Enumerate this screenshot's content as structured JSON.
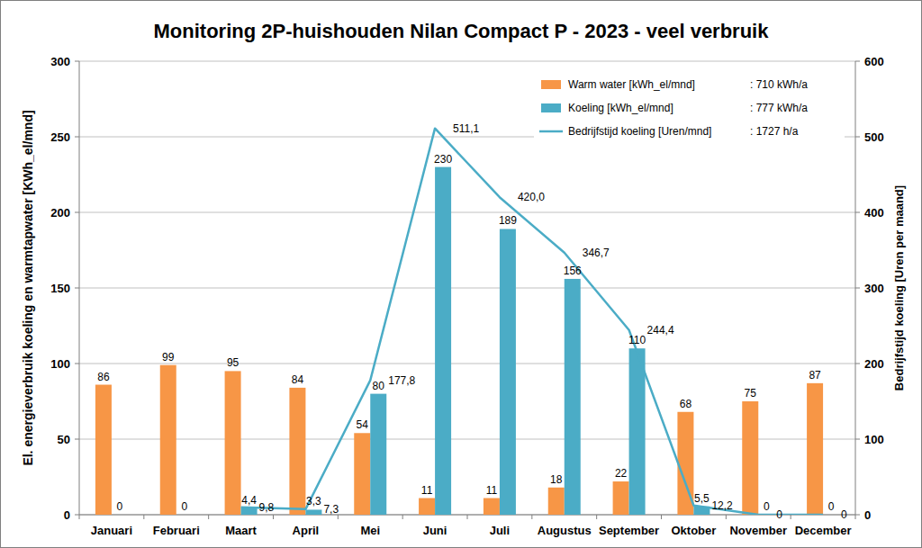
{
  "chart_data": {
    "type": "bar",
    "title": "Monitoring 2P-huishouden Nilan Compact P - 2023 - veel verbruik",
    "ylabel": "El. energieverbruik koeling en warmtapwater  [KWh_el/mnd]",
    "y2label": "Bedrijfstijd koeling [Uren per maand]",
    "categories": [
      "Januari",
      "Februari",
      "Maart",
      "April",
      "Mei",
      "Juni",
      "Juli",
      "Augustus",
      "September",
      "Oktober",
      "November",
      "December"
    ],
    "series": [
      {
        "name": "Warm water [kWh_el/mnd]",
        "color": "#f79646",
        "type": "bar",
        "values": [
          86,
          99,
          95,
          84,
          54,
          11,
          11,
          18,
          22,
          68,
          75,
          87
        ]
      },
      {
        "name": "Koeling [kWh_el/mnd]",
        "color": "#4bacc6",
        "type": "bar",
        "values": [
          0,
          0,
          4.4,
          3.3,
          80,
          230,
          189,
          156,
          110,
          5.5,
          0,
          0
        ],
        "value_labels": [
          "0",
          "0",
          "4,4",
          "3,3",
          "80",
          "230",
          "189",
          "156",
          "110",
          "5,5",
          "0",
          "0"
        ]
      },
      {
        "name": "Bedrijfstijd koeling [Uren/mnd]",
        "color": "#4bacc6",
        "type": "line",
        "axis": "y2",
        "values": [
          null,
          null,
          9.8,
          7.3,
          177.8,
          511.1,
          420.0,
          346.7,
          244.4,
          12.2,
          0,
          0
        ],
        "value_labels": [
          null,
          null,
          "9,8",
          "7,3",
          "177,8",
          "511,1",
          "420,0",
          "346,7",
          "244,4",
          "12,2",
          "0",
          "0"
        ]
      }
    ],
    "annotations": [
      ": 710 kWh/a",
      ": 777 kWh/a",
      ": 1727 h/a"
    ],
    "ylim": [
      0,
      300
    ],
    "yticks": [
      0,
      50,
      100,
      150,
      200,
      250,
      300
    ],
    "y2lim": [
      0,
      600
    ],
    "y2ticks": [
      0,
      100,
      200,
      300,
      400,
      500,
      600
    ],
    "grid": true,
    "legend": "top-right",
    "data_labels": true
  }
}
